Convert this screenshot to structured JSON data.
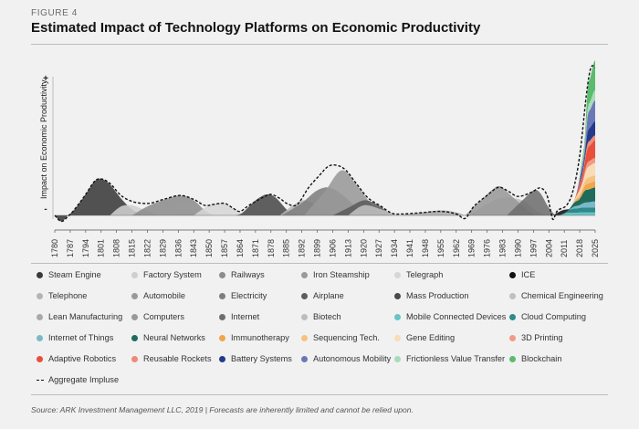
{
  "header": {
    "figure_label": "FIGURE 4",
    "title": "Estimated Impact of Technology Platforms on Economic Productivity"
  },
  "footer": {
    "source": "Source: ARK Investment Management LLC, 2019   |   Forecasts are inherently limited and cannot be relied upon."
  },
  "chart_data": {
    "type": "area",
    "title": "Estimated Impact of Technology Platforms on Economic Productivity",
    "ylabel": "Impact on Economic Productivity",
    "y_axis_markers": [
      "+",
      "-"
    ],
    "x_ticks": [
      "1780",
      "1787",
      "1794",
      "1801",
      "1808",
      "1815",
      "1822",
      "1829",
      "1836",
      "1843",
      "1850",
      "1857",
      "1864",
      "1871",
      "1878",
      "1885",
      "1892",
      "1899",
      "1906",
      "1913",
      "1920",
      "1927",
      "1934",
      "1941",
      "1948",
      "1955",
      "1962",
      "1969",
      "1976",
      "1983",
      "1990",
      "1997",
      "2004",
      "2011",
      "2018",
      "2025"
    ],
    "xlim": [
      1780,
      2025
    ],
    "ylim": [
      -0.3,
      3.1
    ],
    "colors": {
      "dark": "#3a3a3a",
      "mid": "#8c8c8c",
      "light": "#c6c6c6",
      "pale": "#dadada",
      "aggregate": "#111111"
    },
    "series": [
      {
        "name": "Steam Engine",
        "color": "#3a3a3a",
        "values": [
          [
            1780,
            0
          ],
          [
            1783,
            -0.12
          ],
          [
            1786,
            0
          ],
          [
            1789,
            0.12
          ],
          [
            1794,
            0.42
          ],
          [
            1798,
            0.68
          ],
          [
            1801,
            0.73
          ],
          [
            1805,
            0.62
          ],
          [
            1810,
            0.34
          ],
          [
            1815,
            0.12
          ],
          [
            1820,
            0
          ]
        ]
      },
      {
        "name": "Factory System",
        "color": "#cfcfcf",
        "values": [
          [
            1805,
            0
          ],
          [
            1810,
            0.18
          ],
          [
            1815,
            0.2
          ],
          [
            1820,
            0.12
          ],
          [
            1826,
            0
          ]
        ]
      },
      {
        "name": "Railways",
        "color": "#8c8c8c",
        "values": [
          [
            1815,
            0
          ],
          [
            1822,
            0.18
          ],
          [
            1830,
            0.32
          ],
          [
            1837,
            0.4
          ],
          [
            1843,
            0.3
          ],
          [
            1848,
            0.1
          ],
          [
            1852,
            0
          ]
        ]
      },
      {
        "name": "Iron Steamship",
        "color": "#9a9a9a",
        "values": [
          [
            1826,
            0
          ],
          [
            1833,
            0.12
          ],
          [
            1840,
            0.24
          ],
          [
            1846,
            0.14
          ],
          [
            1850,
            0
          ]
        ]
      },
      {
        "name": "Telegraph",
        "color": "#d6d6d6",
        "values": [
          [
            1843,
            0
          ],
          [
            1850,
            0.2
          ],
          [
            1856,
            0.24
          ],
          [
            1862,
            0.12
          ],
          [
            1866,
            0
          ]
        ]
      },
      {
        "name": "Mass Production",
        "color": "#4a4a4a",
        "values": [
          [
            1862,
            0
          ],
          [
            1865,
            0.05
          ],
          [
            1871,
            0.3
          ],
          [
            1876,
            0.42
          ],
          [
            1880,
            0.36
          ],
          [
            1886,
            0.08
          ],
          [
            1890,
            0
          ]
        ]
      },
      {
        "name": "Telephone",
        "color": "#b5b5b5",
        "values": [
          [
            1882,
            0
          ],
          [
            1888,
            0.2
          ],
          [
            1893,
            0.3
          ],
          [
            1899,
            0.2
          ],
          [
            1904,
            0
          ]
        ]
      },
      {
        "name": "Electricity",
        "color": "#7e7e7e",
        "values": [
          [
            1883,
            0
          ],
          [
            1892,
            0.25
          ],
          [
            1899,
            0.5
          ],
          [
            1905,
            0.55
          ],
          [
            1912,
            0.35
          ],
          [
            1920,
            0
          ]
        ]
      },
      {
        "name": "Automobile",
        "color": "#999999",
        "values": [
          [
            1893,
            0
          ],
          [
            1902,
            0.45
          ],
          [
            1910,
            0.9
          ],
          [
            1917,
            0.6
          ],
          [
            1925,
            0.15
          ],
          [
            1932,
            0
          ]
        ]
      },
      {
        "name": "Airplane",
        "color": "#5c5c5c",
        "values": [
          [
            1906,
            0
          ],
          [
            1913,
            0.15
          ],
          [
            1920,
            0.3
          ],
          [
            1926,
            0.22
          ],
          [
            1933,
            0
          ]
        ]
      },
      {
        "name": "Chemical Engineering",
        "color": "#c0c0c0",
        "values": [
          [
            1913,
            0
          ],
          [
            1920,
            0.2
          ],
          [
            1928,
            0.12
          ],
          [
            1935,
            0
          ]
        ]
      },
      {
        "name": "Lean Manufacturing",
        "color": "#a9a9a9",
        "values": [
          [
            1936,
            0
          ],
          [
            1945,
            0.05
          ],
          [
            1955,
            0.1
          ],
          [
            1962,
            0.06
          ],
          [
            1966,
            0
          ]
        ]
      },
      {
        "name": "Biotech",
        "color": "#bdbdbd",
        "values": [
          [
            1968,
            0
          ],
          [
            1975,
            0.2
          ],
          [
            1983,
            0.35
          ],
          [
            1992,
            0.3
          ],
          [
            1998,
            0.1
          ],
          [
            2003,
            0
          ]
        ]
      },
      {
        "name": "Computers",
        "color": "#999999",
        "values": [
          [
            1966,
            0
          ],
          [
            1972,
            0.25
          ],
          [
            1978,
            0.5
          ],
          [
            1982,
            0.58
          ],
          [
            1988,
            0.35
          ],
          [
            1994,
            0.12
          ],
          [
            1998,
            0
          ]
        ]
      },
      {
        "name": "Internet",
        "color": "#6e6e6e",
        "values": [
          [
            1985,
            0
          ],
          [
            1992,
            0.3
          ],
          [
            1997,
            0.5
          ],
          [
            2000,
            0.45
          ],
          [
            2004,
            0.15
          ],
          [
            2007,
            0
          ]
        ]
      },
      {
        "name": "ICE",
        "color": "#111111",
        "values": [
          [
            2006,
            0
          ],
          [
            2010,
            0.1
          ],
          [
            2014,
            0.12
          ],
          [
            2018,
            0.05
          ],
          [
            2022,
            0
          ]
        ]
      },
      {
        "name": "Mobile Connected Devices",
        "color": "#66c6c4",
        "values": [
          [
            2008,
            0
          ],
          [
            2013,
            0.06
          ],
          [
            2018,
            0.06
          ],
          [
            2025,
            0.06
          ]
        ]
      },
      {
        "name": "Cloud Computing",
        "color": "#2e8a8c",
        "values": [
          [
            2010,
            0
          ],
          [
            2016,
            0.08
          ],
          [
            2020,
            0.1
          ],
          [
            2025,
            0.1
          ]
        ]
      },
      {
        "name": "Internet of Things",
        "color": "#7bb8c9",
        "values": [
          [
            2012,
            0
          ],
          [
            2017,
            0.05
          ],
          [
            2021,
            0.1
          ],
          [
            2025,
            0.12
          ]
        ]
      },
      {
        "name": "Neural Networks",
        "color": "#1f6b5c",
        "values": [
          [
            2012,
            0
          ],
          [
            2017,
            0.1
          ],
          [
            2021,
            0.25
          ],
          [
            2025,
            0.28
          ]
        ]
      },
      {
        "name": "Immunotherapy",
        "color": "#f0a64a",
        "values": [
          [
            2014,
            0
          ],
          [
            2018,
            0.05
          ],
          [
            2022,
            0.12
          ],
          [
            2025,
            0.12
          ]
        ]
      },
      {
        "name": "Sequencing Tech.",
        "color": "#f6c27f",
        "values": [
          [
            2014,
            0
          ],
          [
            2018,
            0.05
          ],
          [
            2022,
            0.12
          ],
          [
            2025,
            0.12
          ]
        ]
      },
      {
        "name": "Gene Editing",
        "color": "#f8dcb8",
        "values": [
          [
            2015,
            0
          ],
          [
            2019,
            0.08
          ],
          [
            2022,
            0.22
          ],
          [
            2025,
            0.25
          ]
        ]
      },
      {
        "name": "3D Printing",
        "color": "#f29a84",
        "values": [
          [
            2015,
            0
          ],
          [
            2019,
            0.05
          ],
          [
            2022,
            0.1
          ],
          [
            2025,
            0.1
          ]
        ]
      },
      {
        "name": "Adaptive Robotics",
        "color": "#e8503a",
        "values": [
          [
            2015,
            0
          ],
          [
            2019,
            0.1
          ],
          [
            2022,
            0.3
          ],
          [
            2025,
            0.35
          ]
        ]
      },
      {
        "name": "Reusable Rockets",
        "color": "#ee8a76",
        "values": [
          [
            2016,
            0
          ],
          [
            2020,
            0.05
          ],
          [
            2022,
            0.1
          ],
          [
            2025,
            0.1
          ]
        ]
      },
      {
        "name": "Battery Systems",
        "color": "#243a8c",
        "values": [
          [
            2016,
            0
          ],
          [
            2020,
            0.1
          ],
          [
            2022,
            0.25
          ],
          [
            2025,
            0.28
          ]
        ]
      },
      {
        "name": "Autonomous Mobility",
        "color": "#6b78b8",
        "values": [
          [
            2016,
            0
          ],
          [
            2020,
            0.1
          ],
          [
            2022,
            0.35
          ],
          [
            2025,
            0.42
          ]
        ]
      },
      {
        "name": "Frictionless Value Transfer",
        "color": "#a8dcb8",
        "values": [
          [
            2017,
            0
          ],
          [
            2020,
            0.05
          ],
          [
            2022,
            0.15
          ],
          [
            2025,
            0.2
          ]
        ]
      },
      {
        "name": "Blockchain",
        "color": "#5bbb6e",
        "values": [
          [
            2017,
            0
          ],
          [
            2020,
            0.1
          ],
          [
            2022,
            0.45
          ],
          [
            2025,
            0.6
          ]
        ]
      }
    ],
    "aggregate": {
      "name": "Aggregate Impluse",
      "values": [
        [
          1780,
          0
        ],
        [
          1783,
          -0.12
        ],
        [
          1786,
          -0.02
        ],
        [
          1789,
          0.12
        ],
        [
          1794,
          0.42
        ],
        [
          1798,
          0.68
        ],
        [
          1801,
          0.73
        ],
        [
          1805,
          0.64
        ],
        [
          1810,
          0.4
        ],
        [
          1815,
          0.28
        ],
        [
          1820,
          0.24
        ],
        [
          1824,
          0.25
        ],
        [
          1830,
          0.33
        ],
        [
          1837,
          0.4
        ],
        [
          1843,
          0.32
        ],
        [
          1848,
          0.2
        ],
        [
          1852,
          0.22
        ],
        [
          1857,
          0.24
        ],
        [
          1861,
          0.14
        ],
        [
          1864,
          0.08
        ],
        [
          1868,
          0.2
        ],
        [
          1874,
          0.35
        ],
        [
          1878,
          0.42
        ],
        [
          1882,
          0.34
        ],
        [
          1886,
          0.22
        ],
        [
          1890,
          0.22
        ],
        [
          1895,
          0.55
        ],
        [
          1900,
          0.8
        ],
        [
          1904,
          0.98
        ],
        [
          1908,
          1.0
        ],
        [
          1912,
          0.9
        ],
        [
          1917,
          0.62
        ],
        [
          1922,
          0.35
        ],
        [
          1928,
          0.18
        ],
        [
          1933,
          0.04
        ],
        [
          1938,
          0.03
        ],
        [
          1945,
          0.05
        ],
        [
          1955,
          0.08
        ],
        [
          1962,
          0.03
        ],
        [
          1966,
          -0.06
        ],
        [
          1970,
          0.18
        ],
        [
          1976,
          0.4
        ],
        [
          1981,
          0.56
        ],
        [
          1985,
          0.5
        ],
        [
          1990,
          0.38
        ],
        [
          1996,
          0.46
        ],
        [
          2000,
          0.55
        ],
        [
          2003,
          0.42
        ],
        [
          2005,
          0.05
        ],
        [
          2006,
          -0.08
        ],
        [
          2008,
          0.1
        ],
        [
          2012,
          0.2
        ],
        [
          2015,
          0.5
        ],
        [
          2018,
          1.2
        ],
        [
          2021,
          2.4
        ],
        [
          2023,
          2.95
        ],
        [
          2025,
          2.95
        ]
      ]
    },
    "legend": {
      "columns": 6,
      "entries": [
        {
          "label": "Steam Engine",
          "color": "#3a3a3a"
        },
        {
          "label": "Factory System",
          "color": "#cfcfcf"
        },
        {
          "label": "Railways",
          "color": "#8c8c8c"
        },
        {
          "label": "Iron Steamship",
          "color": "#9a9a9a"
        },
        {
          "label": "Telegraph",
          "color": "#d6d6d6"
        },
        {
          "label": "ICE",
          "color": "#111111"
        },
        {
          "label": "Telephone",
          "color": "#b5b5b5"
        },
        {
          "label": "Automobile",
          "color": "#999999"
        },
        {
          "label": "Electricity",
          "color": "#7e7e7e"
        },
        {
          "label": "Airplane",
          "color": "#5c5c5c"
        },
        {
          "label": "Mass Production",
          "color": "#4a4a4a"
        },
        {
          "label": "Chemical Engineering",
          "color": "#c0c0c0"
        },
        {
          "label": "Lean Manufacturing",
          "color": "#a9a9a9"
        },
        {
          "label": "Computers",
          "color": "#999999"
        },
        {
          "label": "Internet",
          "color": "#6e6e6e"
        },
        {
          "label": "Biotech",
          "color": "#bdbdbd"
        },
        {
          "label": "Mobile Connected Devices",
          "color": "#66c6c4"
        },
        {
          "label": "Cloud Computing",
          "color": "#2e8a8c"
        },
        {
          "label": "Internet of Things",
          "color": "#7bb8c9"
        },
        {
          "label": "Neural Networks",
          "color": "#1f6b5c"
        },
        {
          "label": "Immunotherapy",
          "color": "#f0a64a"
        },
        {
          "label": "Sequencing Tech.",
          "color": "#f6c27f"
        },
        {
          "label": "Gene Editing",
          "color": "#f8dcb8"
        },
        {
          "label": "3D Printing",
          "color": "#f29a84"
        },
        {
          "label": "Adaptive Robotics",
          "color": "#e8503a"
        },
        {
          "label": "Reusable Rockets",
          "color": "#ee8a76"
        },
        {
          "label": "Battery Systems",
          "color": "#243a8c"
        },
        {
          "label": "Autonomous Mobility",
          "color": "#6b78b8"
        },
        {
          "label": "Frictionless Value Transfer",
          "color": "#a8dcb8"
        },
        {
          "label": "Blockchain",
          "color": "#5bbb6e"
        },
        {
          "label": "Aggregate Impluse",
          "color": "#111111",
          "style": "dashed"
        }
      ]
    },
    "grid": false
  }
}
